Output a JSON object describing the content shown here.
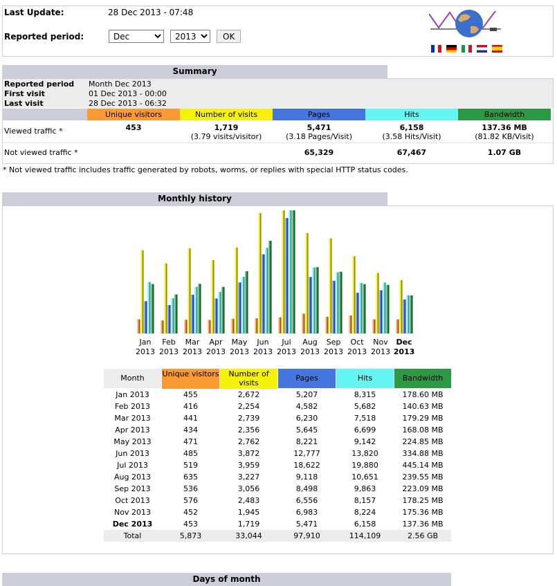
{
  "header": {
    "last_update_label": "Last Update:",
    "last_update_value": "28 Dec 2013 - 07:48",
    "period_label": "Reported period:",
    "month_selected": "Dec",
    "year_selected": "2013",
    "ok_label": "OK"
  },
  "summary": {
    "title": "Summary",
    "reported_period_label": "Reported period",
    "reported_period_value": "Month Dec 2013",
    "first_visit_label": "First visit",
    "first_visit_value": "01 Dec 2013 - 00:00",
    "last_visit_label": "Last visit",
    "last_visit_value": "28 Dec 2013 - 06:32",
    "headers": [
      "Unique visitors",
      "Number of visits",
      "Pages",
      "Hits",
      "Bandwidth"
    ],
    "viewed_label": "Viewed traffic *",
    "viewed_values": [
      "453",
      "1,719",
      "5,471",
      "6,158",
      "137.36 MB"
    ],
    "viewed_sub": [
      "",
      "(3.79 visits/visitor)",
      "(3.18 Pages/Visit)",
      "(3.58 Hits/Visit)",
      "(81.82 KB/Visit)"
    ],
    "not_viewed_label": "Not viewed traffic *",
    "not_viewed_values": [
      "",
      "",
      "65,329",
      "67,467",
      "1.07 GB"
    ],
    "footnote": "* Not viewed traffic includes traffic generated by robots, worms, or replies with special HTTP status codes."
  },
  "monthly": {
    "title": "Monthly history",
    "table_headers": [
      "Month",
      "Unique visitors",
      "Number of visits",
      "Pages",
      "Hits",
      "Bandwidth"
    ],
    "rows": [
      [
        "Jan 2013",
        "455",
        "2,672",
        "5,207",
        "8,315",
        "178.60 MB"
      ],
      [
        "Feb 2013",
        "416",
        "2,254",
        "4,582",
        "5,682",
        "140.63 MB"
      ],
      [
        "Mar 2013",
        "441",
        "2,739",
        "6,230",
        "7,518",
        "179.29 MB"
      ],
      [
        "Apr 2013",
        "434",
        "2,356",
        "5,645",
        "6,699",
        "168.08 MB"
      ],
      [
        "May 2013",
        "471",
        "2,762",
        "8,221",
        "9,142",
        "224.85 MB"
      ],
      [
        "Jun 2013",
        "485",
        "3,872",
        "12,777",
        "13,820",
        "334.88 MB"
      ],
      [
        "Jul 2013",
        "519",
        "3,959",
        "18,622",
        "19,880",
        "445.14 MB"
      ],
      [
        "Aug 2013",
        "635",
        "3,227",
        "9,118",
        "10,651",
        "239.55 MB"
      ],
      [
        "Sep 2013",
        "536",
        "3,056",
        "8,498",
        "9,863",
        "223.09 MB"
      ],
      [
        "Oct 2013",
        "576",
        "2,483",
        "6,556",
        "8,157",
        "178.25 MB"
      ],
      [
        "Nov 2013",
        "452",
        "1,945",
        "6,983",
        "8,224",
        "175.36 MB"
      ],
      [
        "Dec 2013",
        "453",
        "1,719",
        "5,471",
        "6,158",
        "137.36 MB"
      ]
    ],
    "total": [
      "Total",
      "5,873",
      "33,044",
      "97,910",
      "114,109",
      "2.56 GB"
    ]
  },
  "days_title": "Days of month",
  "colors": {
    "visitors": "#f99a35",
    "visits": "#f6f20b",
    "pages": "#4476dd",
    "hits": "#65f6f4",
    "bandwidth": "#2d9945",
    "header_bg": "#cccdd9"
  },
  "chart_data": {
    "type": "bar",
    "categories": [
      "Jan",
      "Feb",
      "Mar",
      "Apr",
      "May",
      "Jun",
      "Jul",
      "Aug",
      "Sep",
      "Oct",
      "Nov",
      "Dec"
    ],
    "category_years": [
      "2013",
      "2013",
      "2013",
      "2013",
      "2013",
      "2013",
      "2013",
      "2013",
      "2013",
      "2013",
      "2013",
      "2013"
    ],
    "series": [
      {
        "name": "Unique visitors",
        "color": "#f99a35",
        "values": [
          455,
          416,
          441,
          434,
          471,
          485,
          519,
          635,
          536,
          576,
          452,
          453
        ]
      },
      {
        "name": "Number of visits",
        "color": "#f6f20b",
        "values": [
          2672,
          2254,
          2739,
          2356,
          2762,
          3872,
          3959,
          3227,
          3056,
          2483,
          1945,
          1719
        ]
      },
      {
        "name": "Pages",
        "color": "#4476dd",
        "values": [
          5207,
          4582,
          6230,
          5645,
          8221,
          12777,
          18622,
          9118,
          8498,
          6556,
          6983,
          5471
        ]
      },
      {
        "name": "Hits",
        "color": "#65f6f4",
        "values": [
          8315,
          5682,
          7518,
          6699,
          9142,
          13820,
          19880,
          10651,
          9863,
          8157,
          8224,
          6158
        ]
      },
      {
        "name": "Bandwidth",
        "color": "#2d9945",
        "values": [
          178.6,
          140.63,
          179.29,
          168.08,
          224.85,
          334.88,
          445.14,
          239.55,
          223.09,
          178.25,
          175.36,
          137.36
        ]
      }
    ],
    "scale_groups": [
      "visitors-visits",
      "pages-hits",
      "bandwidth"
    ],
    "grid": false,
    "legend": "none"
  }
}
